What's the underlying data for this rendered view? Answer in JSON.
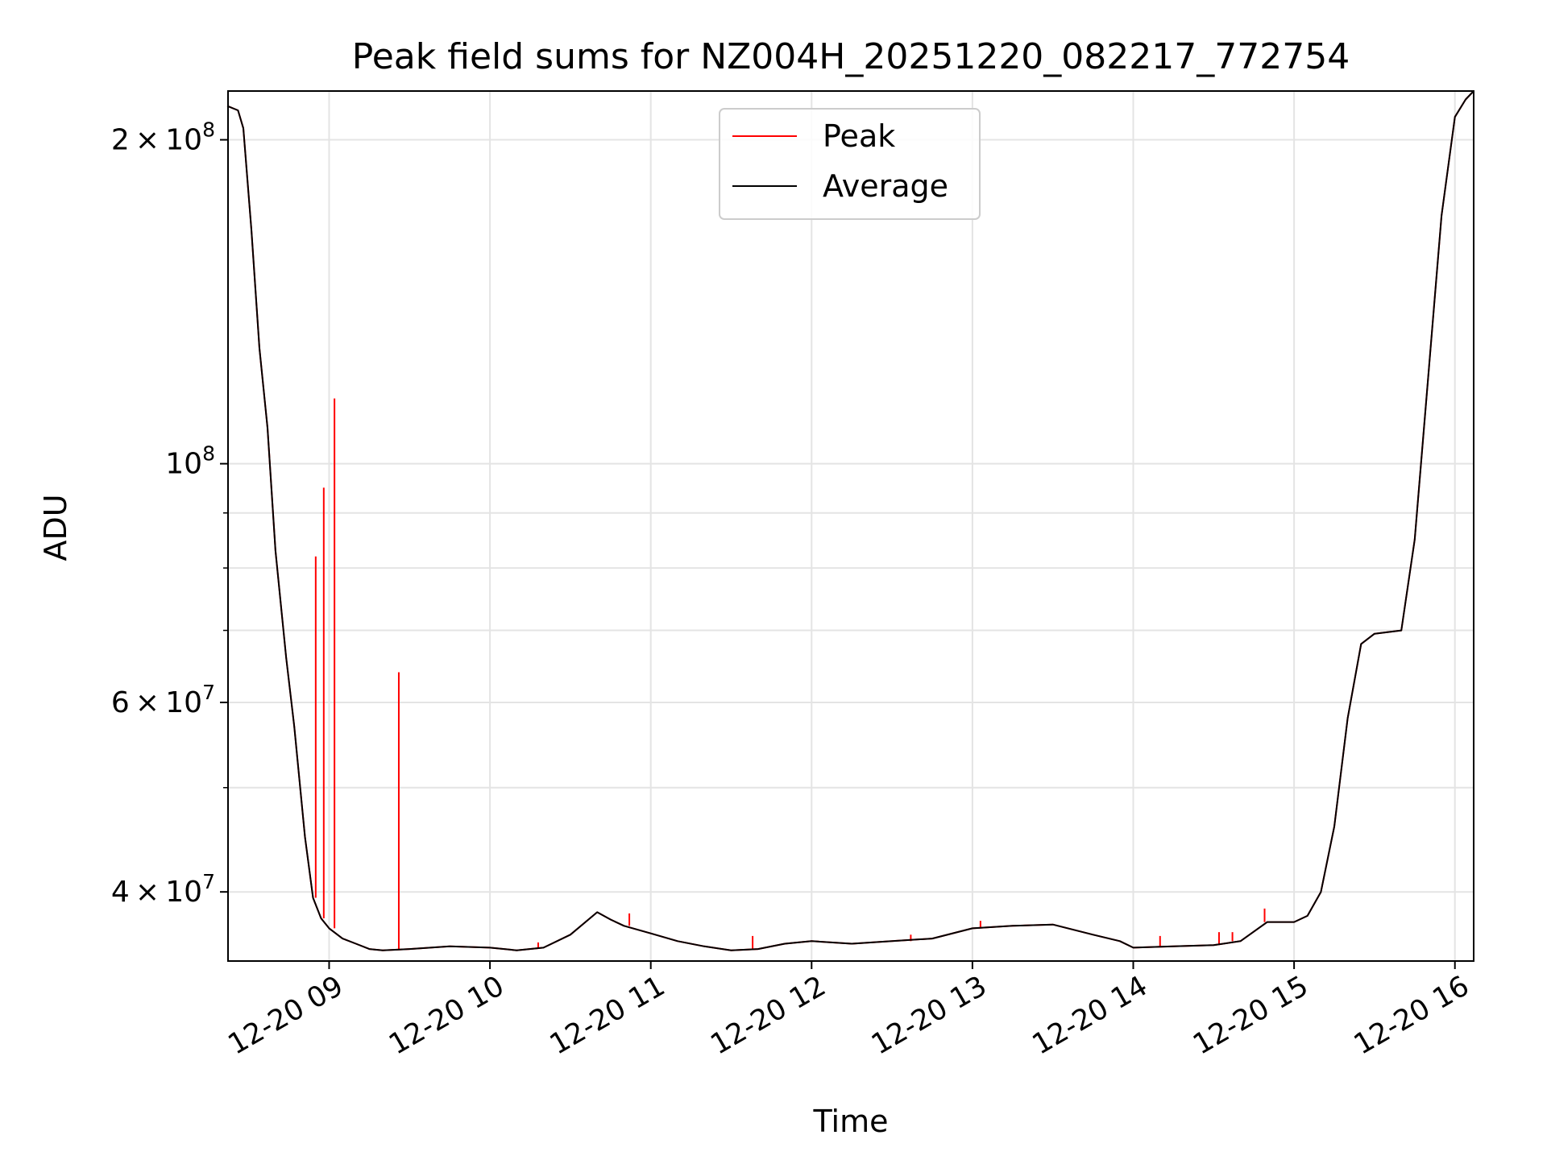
{
  "chart_data": {
    "type": "line",
    "title": "Peak field sums for NZ004H_20251220_082217_772754",
    "xlabel": "Time",
    "ylabel": "ADU",
    "yscale": "log",
    "ylim": [
      34500000,
      222000000
    ],
    "xlim": [
      "2025-12-20T08:22:17",
      "2025-12-20T16:07:00"
    ],
    "x_ticks": [
      {
        "t": "2025-12-20T09:00",
        "label": "12-20 09"
      },
      {
        "t": "2025-12-20T10:00",
        "label": "12-20 10"
      },
      {
        "t": "2025-12-20T11:00",
        "label": "12-20 11"
      },
      {
        "t": "2025-12-20T12:00",
        "label": "12-20 12"
      },
      {
        "t": "2025-12-20T13:00",
        "label": "12-20 13"
      },
      {
        "t": "2025-12-20T14:00",
        "label": "12-20 14"
      },
      {
        "t": "2025-12-20T15:00",
        "label": "12-20 15"
      },
      {
        "t": "2025-12-20T16:00",
        "label": "12-20 16"
      }
    ],
    "y_major_ticks": [
      {
        "value": 40000000,
        "mant": "4",
        "exp": "7"
      },
      {
        "value": 60000000,
        "mant": "6",
        "exp": "7"
      },
      {
        "value": 100000000,
        "mant": "",
        "exp": "8"
      },
      {
        "value": 200000000,
        "mant": "2",
        "exp": "8"
      }
    ],
    "y_minor_ticks": [
      50000000,
      70000000,
      80000000,
      90000000
    ],
    "grid": true,
    "legend": {
      "position": "top-center",
      "entries": [
        "Peak",
        "Average"
      ]
    },
    "series": [
      {
        "name": "Average",
        "color": "#000000",
        "x": [
          "2025-12-20T08:22",
          "2025-12-20T08:26",
          "2025-12-20T08:28",
          "2025-12-20T08:31",
          "2025-12-20T08:34",
          "2025-12-20T08:37",
          "2025-12-20T08:40",
          "2025-12-20T08:44",
          "2025-12-20T08:47",
          "2025-12-20T08:51",
          "2025-12-20T08:54",
          "2025-12-20T08:57",
          "2025-12-20T09:00",
          "2025-12-20T09:05",
          "2025-12-20T09:10",
          "2025-12-20T09:15",
          "2025-12-20T09:20",
          "2025-12-20T09:30",
          "2025-12-20T09:45",
          "2025-12-20T10:00",
          "2025-12-20T10:10",
          "2025-12-20T10:20",
          "2025-12-20T10:30",
          "2025-12-20T10:40",
          "2025-12-20T10:45",
          "2025-12-20T10:50",
          "2025-12-20T11:00",
          "2025-12-20T11:10",
          "2025-12-20T11:20",
          "2025-12-20T11:30",
          "2025-12-20T11:40",
          "2025-12-20T11:50",
          "2025-12-20T12:00",
          "2025-12-20T12:15",
          "2025-12-20T12:30",
          "2025-12-20T12:45",
          "2025-12-20T13:00",
          "2025-12-20T13:15",
          "2025-12-20T13:30",
          "2025-12-20T13:45",
          "2025-12-20T13:55",
          "2025-12-20T14:00",
          "2025-12-20T14:15",
          "2025-12-20T14:30",
          "2025-12-20T14:40",
          "2025-12-20T14:50",
          "2025-12-20T15:00",
          "2025-12-20T15:05",
          "2025-12-20T15:10",
          "2025-12-20T15:15",
          "2025-12-20T15:20",
          "2025-12-20T15:25",
          "2025-12-20T15:30",
          "2025-12-20T15:40",
          "2025-12-20T15:45",
          "2025-12-20T15:50",
          "2025-12-20T15:55",
          "2025-12-20T16:00",
          "2025-12-20T16:04",
          "2025-12-20T16:07"
        ],
        "values": [
          215000000,
          213000000,
          205000000,
          165000000,
          128000000,
          108000000,
          83000000,
          66000000,
          57000000,
          45000000,
          39500000,
          37800000,
          37000000,
          36200000,
          35800000,
          35400000,
          35300000,
          35400000,
          35600000,
          35500000,
          35300000,
          35500000,
          36500000,
          38300000,
          37700000,
          37200000,
          36600000,
          36000000,
          35600000,
          35300000,
          35400000,
          35800000,
          36000000,
          35800000,
          36000000,
          36200000,
          37000000,
          37200000,
          37300000,
          36500000,
          36000000,
          35500000,
          35600000,
          35700000,
          36000000,
          37500000,
          37500000,
          38000000,
          40000000,
          46000000,
          58000000,
          68000000,
          69500000,
          70000000,
          85000000,
          120000000,
          170000000,
          210000000,
          218000000,
          222000000
        ]
      },
      {
        "name": "Peak",
        "color": "#ff0000",
        "x": [
          "2025-12-20T08:22",
          "2025-12-20T08:26",
          "2025-12-20T08:28",
          "2025-12-20T08:31",
          "2025-12-20T08:34",
          "2025-12-20T08:37",
          "2025-12-20T08:40",
          "2025-12-20T08:44",
          "2025-12-20T08:47",
          "2025-12-20T08:51",
          "2025-12-20T08:54",
          "2025-12-20T08:57",
          "2025-12-20T09:00",
          "2025-12-20T09:05",
          "2025-12-20T09:10",
          "2025-12-20T09:15",
          "2025-12-20T09:20",
          "2025-12-20T09:30",
          "2025-12-20T09:45",
          "2025-12-20T10:00",
          "2025-12-20T10:10",
          "2025-12-20T10:20",
          "2025-12-20T10:30",
          "2025-12-20T10:40",
          "2025-12-20T10:45",
          "2025-12-20T10:50",
          "2025-12-20T11:00",
          "2025-12-20T11:10",
          "2025-12-20T11:20",
          "2025-12-20T11:30",
          "2025-12-20T11:40",
          "2025-12-20T11:50",
          "2025-12-20T12:00",
          "2025-12-20T12:15",
          "2025-12-20T12:30",
          "2025-12-20T12:45",
          "2025-12-20T13:00",
          "2025-12-20T13:15",
          "2025-12-20T13:30",
          "2025-12-20T13:45",
          "2025-12-20T13:55",
          "2025-12-20T14:00",
          "2025-12-20T14:15",
          "2025-12-20T14:30",
          "2025-12-20T14:40",
          "2025-12-20T14:50",
          "2025-12-20T15:00",
          "2025-12-20T15:05",
          "2025-12-20T15:10",
          "2025-12-20T15:15",
          "2025-12-20T15:20",
          "2025-12-20T15:25",
          "2025-12-20T15:30",
          "2025-12-20T15:40",
          "2025-12-20T15:45",
          "2025-12-20T15:50",
          "2025-12-20T15:55",
          "2025-12-20T16:00",
          "2025-12-20T16:04",
          "2025-12-20T16:07"
        ],
        "values": [
          215000000,
          213000000,
          205000000,
          165000000,
          128000000,
          108000000,
          83000000,
          66000000,
          57000000,
          45000000,
          39500000,
          37800000,
          37000000,
          36200000,
          35800000,
          35400000,
          35300000,
          35400000,
          35600000,
          35500000,
          35300000,
          35500000,
          36500000,
          38300000,
          37700000,
          37200000,
          36600000,
          36000000,
          35600000,
          35300000,
          35400000,
          35800000,
          36000000,
          35800000,
          36000000,
          36200000,
          37000000,
          37200000,
          37300000,
          36500000,
          36000000,
          35500000,
          35600000,
          35700000,
          36000000,
          37500000,
          37500000,
          38000000,
          40000000,
          46000000,
          58000000,
          68000000,
          69500000,
          70000000,
          85000000,
          120000000,
          170000000,
          210000000,
          218000000,
          222000000
        ],
        "spikes": [
          {
            "t": "2025-12-20T08:55",
            "value": 82000000
          },
          {
            "t": "2025-12-20T08:58",
            "value": 95000000
          },
          {
            "t": "2025-12-20T09:02",
            "value": 115000000
          },
          {
            "t": "2025-12-20T09:26",
            "value": 64000000
          },
          {
            "t": "2025-12-20T10:18",
            "value": 35900000
          },
          {
            "t": "2025-12-20T10:52",
            "value": 38200000
          },
          {
            "t": "2025-12-20T11:38",
            "value": 36400000
          },
          {
            "t": "2025-12-20T12:37",
            "value": 36500000
          },
          {
            "t": "2025-12-20T13:03",
            "value": 37600000
          },
          {
            "t": "2025-12-20T14:10",
            "value": 36400000
          },
          {
            "t": "2025-12-20T14:32",
            "value": 36700000
          },
          {
            "t": "2025-12-20T14:37",
            "value": 36700000
          },
          {
            "t": "2025-12-20T14:49",
            "value": 38600000
          }
        ]
      }
    ]
  }
}
